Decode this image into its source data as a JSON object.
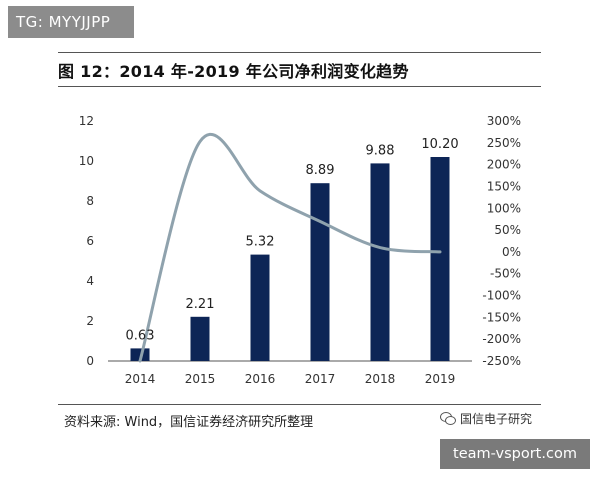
{
  "badge": "TG: MYYJJPP",
  "title": "图 12：2014 年-2019 年公司净利润变化趋势",
  "source": "资料来源: Wind，国信证券经济研究所整理",
  "wechat_label": "国信电子研究",
  "watermark": "team-vsport.com",
  "colors": {
    "bar": "#0d2556",
    "line": "#8fa2ad",
    "axis": "#555555"
  },
  "chart_data": {
    "type": "bar",
    "categories": [
      "2014",
      "2015",
      "2016",
      "2017",
      "2018",
      "2019"
    ],
    "series": [
      {
        "type": "bar",
        "values": [
          0.63,
          2.21,
          5.32,
          8.89,
          9.88,
          10.2
        ],
        "axis": "left",
        "data_labels": [
          "0.63",
          "2.21",
          "5.32",
          "8.89",
          "9.88",
          "10.20"
        ]
      },
      {
        "type": "line",
        "values": [
          -250,
          253,
          140,
          70,
          10,
          0
        ],
        "axis": "right"
      }
    ],
    "ylim_left": [
      0,
      12
    ],
    "yticks_left": [
      "0",
      "2",
      "4",
      "6",
      "8",
      "10",
      "12"
    ],
    "ylim_right": [
      -250,
      300
    ],
    "yticks_right": [
      "-250%",
      "-200%",
      "-150%",
      "-100%",
      "-50%",
      "0%",
      "50%",
      "100%",
      "150%",
      "200%",
      "250%",
      "300%"
    ],
    "grid": false,
    "legend": "none"
  }
}
